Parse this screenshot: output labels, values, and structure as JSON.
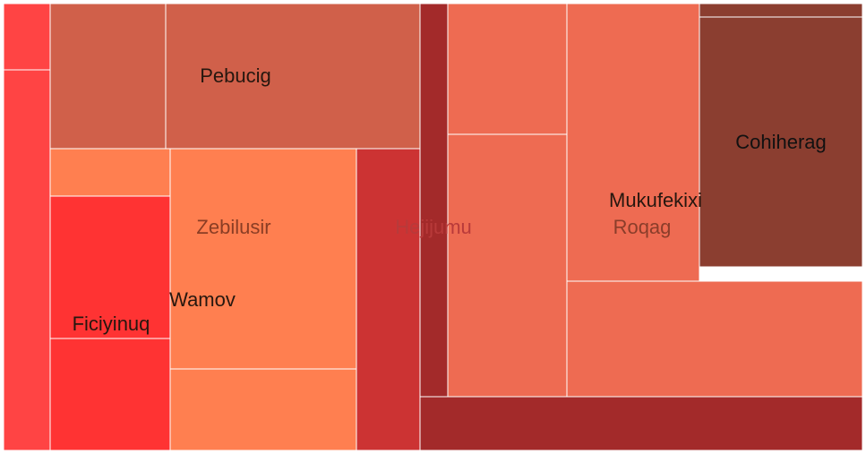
{
  "chart_data": {
    "type": "treemap",
    "title": "",
    "labels": [
      {
        "name": "Pebucig",
        "color": "#26170f"
      },
      {
        "name": "Zebilusir",
        "color": "#8a3d24"
      },
      {
        "name": "Wamov",
        "color": "#26170f"
      },
      {
        "name": "Ficiyinuq",
        "color": "#26170f"
      },
      {
        "name": "Hejijumu",
        "color": "#b83a3a"
      },
      {
        "name": "Mukufekixi",
        "color": "#26170f"
      },
      {
        "name": "Roqag",
        "color": "#8a3d2a"
      },
      {
        "name": "Cohiherag",
        "color": "#111111"
      }
    ],
    "groups": [
      {
        "name": "Ficiyinuq",
        "color": "#ff3333",
        "cells": [
          {
            "color": "#ff4444"
          },
          {
            "color": "#ff4444"
          },
          {
            "color": "#ff3333"
          },
          {
            "color": "#ff3333"
          }
        ]
      },
      {
        "name": "Pebucig",
        "color": "#d0604a",
        "cells": [
          {
            "color": "#d0604a"
          },
          {
            "color": "#d0604a"
          }
        ]
      },
      {
        "name": "Zebilusir",
        "color": "#ff7f50",
        "cells": [
          {
            "color": "#ff7f50"
          },
          {
            "color": "#ff7f50"
          },
          {
            "color": "#ff7f50"
          }
        ]
      },
      {
        "name": "Hejijumu",
        "color": "#cc3333",
        "cells": [
          {
            "color": "#cc3333"
          }
        ]
      },
      {
        "name": "Mukufekixi",
        "color": "#a32a2a",
        "cells": [
          {
            "color": "#a32a2a"
          },
          {
            "color": "#a32a2a"
          }
        ]
      },
      {
        "name": "Roqag",
        "color": "#ee6b52",
        "cells": [
          {
            "color": "#ee6b52"
          },
          {
            "color": "#ee6b52"
          },
          {
            "color": "#ee6b52"
          },
          {
            "color": "#ee6b52"
          }
        ]
      },
      {
        "name": "Cohiherag",
        "color": "#8b3e30",
        "cells": [
          {
            "color": "#8b3e30"
          },
          {
            "color": "#8b3e30"
          }
        ]
      }
    ]
  }
}
